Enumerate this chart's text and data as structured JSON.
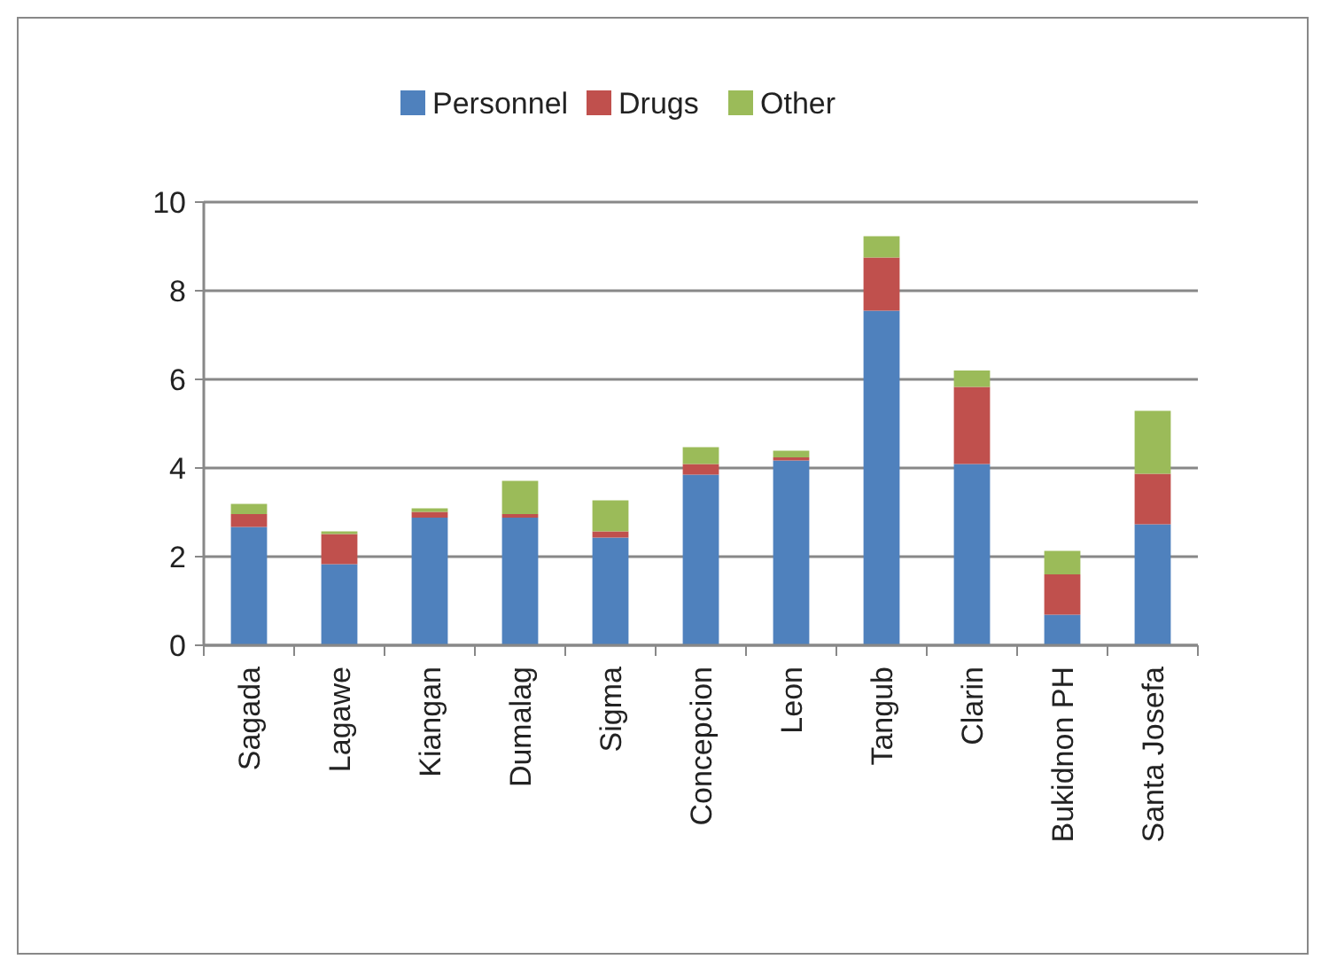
{
  "chart_data": {
    "type": "bar",
    "stacked": true,
    "categories": [
      "Sagada",
      "Lagawe",
      "Kiangan",
      "Dumalag",
      "Sigma",
      "Concepcion",
      "Leon",
      "Tangub",
      "Clarin",
      "Bukidnon PH",
      "Santa Josefa"
    ],
    "series": [
      {
        "name": "Personnel",
        "color": "#4f81bd",
        "values": [
          2.67,
          1.83,
          2.88,
          2.88,
          2.43,
          3.85,
          4.17,
          7.55,
          4.09,
          0.69,
          2.73
        ]
      },
      {
        "name": "Drugs",
        "color": "#c0504d",
        "values": [
          0.29,
          0.68,
          0.13,
          0.08,
          0.14,
          0.24,
          0.07,
          1.2,
          1.74,
          0.91,
          1.14
        ]
      },
      {
        "name": "Other",
        "color": "#9bbb59",
        "values": [
          0.23,
          0.06,
          0.08,
          0.75,
          0.7,
          0.38,
          0.15,
          0.48,
          0.37,
          0.53,
          1.42
        ]
      }
    ],
    "ylim": [
      0,
      10
    ],
    "yticks": [
      0,
      2,
      4,
      6,
      8,
      10
    ],
    "grid": "y",
    "legend": "top"
  }
}
